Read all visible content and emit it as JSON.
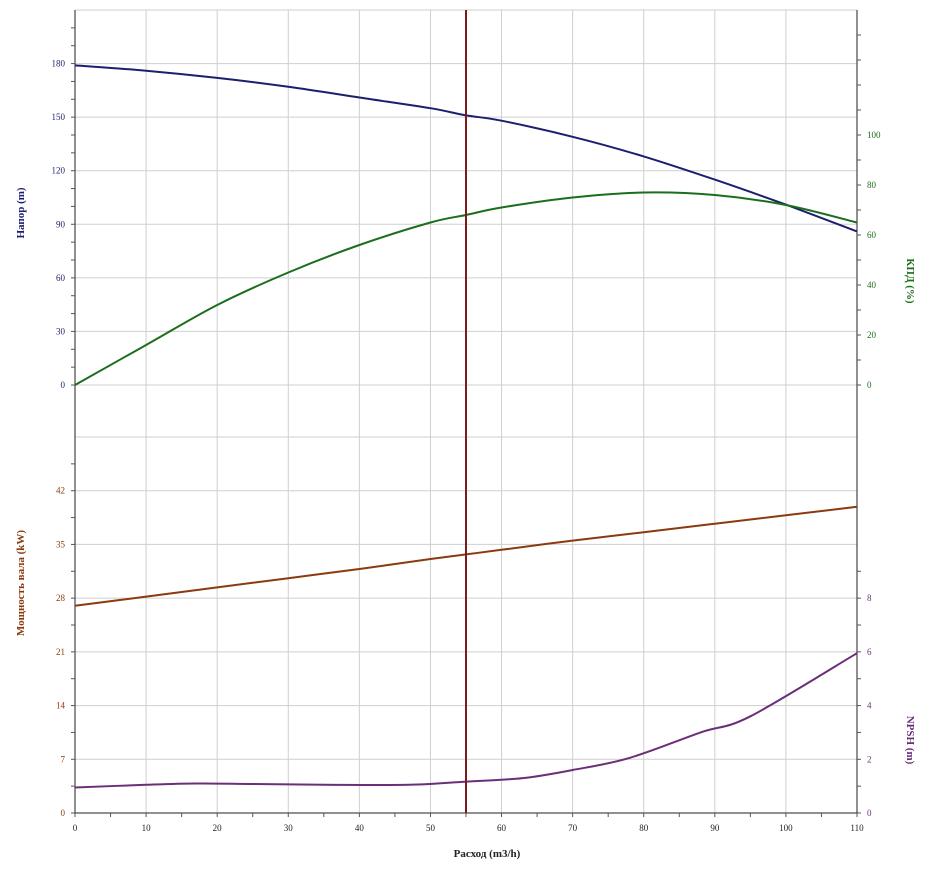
{
  "colors": {
    "head": "#1b1f6e",
    "efficiency": "#1b6e1b",
    "power": "#8b3a0f",
    "npsh": "#6b2f7a",
    "operating_point": "#7a1a1a",
    "grid": "#cfcfcf",
    "axis": "#222222"
  },
  "chart_data": [
    {
      "type": "line",
      "panel": "upper",
      "x_ticks": [
        0,
        10,
        20,
        30,
        40,
        50,
        60,
        70,
        80,
        90,
        100,
        110
      ],
      "xlim": [
        0,
        110
      ],
      "left_axis": {
        "label": "Напор (m)",
        "ylim": [
          0,
          210
        ],
        "ticks": [
          0,
          30,
          60,
          90,
          120,
          150,
          180
        ]
      },
      "right_axis": {
        "label": "КПД (%)",
        "ylim": [
          0,
          150
        ],
        "ticks": [
          0,
          20,
          40,
          60,
          80,
          100
        ]
      },
      "series": [
        {
          "key": "head",
          "axis": "left",
          "x": [
            0,
            10,
            20,
            30,
            40,
            50,
            55,
            60,
            70,
            80,
            90,
            100,
            110
          ],
          "values": [
            179,
            176,
            172,
            167,
            161,
            155,
            151,
            148,
            139,
            128,
            115,
            101,
            86
          ]
        },
        {
          "key": "efficiency",
          "axis": "right",
          "x": [
            0,
            10,
            20,
            30,
            40,
            50,
            55,
            60,
            70,
            80,
            90,
            100,
            110
          ],
          "values": [
            0,
            16,
            32,
            45,
            56,
            65,
            68,
            71,
            75,
            77,
            76,
            72,
            65
          ]
        }
      ]
    },
    {
      "type": "line",
      "panel": "lower",
      "x_ticks": [
        0,
        10,
        20,
        30,
        40,
        50,
        60,
        70,
        80,
        90,
        100,
        110
      ],
      "xlim": [
        0,
        110
      ],
      "xlabel": "Расход (m3/h)",
      "left_axis": {
        "label": "Мощность вала (kW)",
        "ylim": [
          0,
          49
        ],
        "ticks": [
          0,
          7,
          14,
          21,
          28,
          35,
          42
        ]
      },
      "right_axis": {
        "label": "NPSH (m)",
        "ylim": [
          0,
          14
        ],
        "ticks": [
          0,
          2,
          4,
          6,
          8
        ]
      },
      "series": [
        {
          "key": "power",
          "axis": "left",
          "x": [
            0,
            10,
            20,
            30,
            40,
            50,
            55,
            60,
            70,
            80,
            90,
            100,
            110
          ],
          "values": [
            27.0,
            28.2,
            29.4,
            30.6,
            31.8,
            33.1,
            33.7,
            34.3,
            35.5,
            36.6,
            37.7,
            38.8,
            39.9
          ]
        },
        {
          "key": "npsh",
          "axis": "right",
          "x": [
            0,
            10,
            17,
            25,
            35,
            47,
            55,
            63,
            70,
            78,
            88,
            95,
            110
          ],
          "values": [
            0.95,
            1.05,
            1.1,
            1.08,
            1.05,
            1.05,
            1.17,
            1.3,
            1.6,
            2.05,
            3.0,
            3.6,
            5.95
          ]
        }
      ]
    }
  ],
  "operating_point": {
    "x": 55
  }
}
